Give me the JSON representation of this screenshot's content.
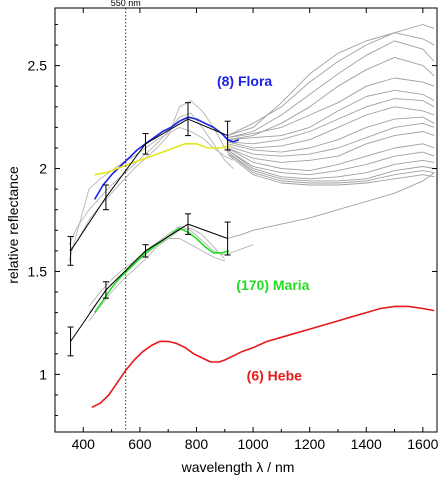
{
  "chart_data": {
    "type": "line",
    "title": "",
    "xlabel": "wavelength λ / nm",
    "ylabel": "relative reflectance",
    "xlim": [
      300,
      1650
    ],
    "ylim": [
      0.72,
      2.78
    ],
    "x_ticks": [
      400,
      600,
      800,
      1000,
      1200,
      1400,
      1600
    ],
    "y_ticks": [
      1,
      1.5,
      2,
      2.5
    ],
    "y_tick_labels": [
      "1",
      "1.5",
      "2",
      "2.5"
    ],
    "grid": false,
    "reference_line": {
      "x": 550,
      "label": "550 nm",
      "style": "dotted"
    },
    "annotations": [
      {
        "text": "(8) Flora",
        "color": "#1a22e6",
        "x": 970,
        "y": 2.4
      },
      {
        "text": "(170) Maria",
        "color": "#22dd22",
        "x": 1070,
        "y": 1.41
      },
      {
        "text": "(6) Hebe",
        "color": "#e61a1a",
        "x": 1075,
        "y": 0.97
      }
    ],
    "series": [
      {
        "color": "#1a22e6",
        "x": [
          440,
          470,
          500,
          530,
          560,
          590,
          620,
          650,
          680,
          710,
          740,
          770,
          800,
          830,
          860,
          890,
          910,
          930,
          950
        ],
        "y": [
          1.85,
          1.92,
          1.97,
          2.01,
          2.05,
          2.09,
          2.12,
          2.15,
          2.18,
          2.2,
          2.23,
          2.25,
          2.24,
          2.22,
          2.2,
          2.17,
          2.14,
          2.13,
          2.14
        ]
      },
      {
        "color": "#e6e61a",
        "x": [
          440,
          480,
          520,
          560,
          600,
          640,
          680,
          720,
          760,
          800,
          840,
          880,
          920
        ],
        "y": [
          1.97,
          1.98,
          2.0,
          2.02,
          2.04,
          2.06,
          2.08,
          2.1,
          2.12,
          2.12,
          2.1,
          2.1,
          2.11
        ]
      },
      {
        "color": "#22dd22",
        "x": [
          440,
          470,
          500,
          530,
          560,
          590,
          620,
          650,
          680,
          710,
          740,
          770,
          800,
          830,
          860,
          890,
          915
        ],
        "y": [
          1.3,
          1.36,
          1.42,
          1.47,
          1.51,
          1.55,
          1.59,
          1.62,
          1.65,
          1.68,
          1.71,
          1.69,
          1.66,
          1.62,
          1.59,
          1.59,
          1.6
        ]
      },
      {
        "color": "#e61a1a",
        "x": [
          430,
          460,
          490,
          520,
          550,
          580,
          610,
          640,
          670,
          700,
          730,
          760,
          790,
          820,
          850,
          880,
          900,
          930,
          960,
          1000,
          1050,
          1100,
          1150,
          1200,
          1250,
          1300,
          1350,
          1400,
          1450,
          1500,
          1550,
          1600,
          1640
        ],
        "y": [
          0.84,
          0.86,
          0.9,
          0.96,
          1.02,
          1.07,
          1.11,
          1.14,
          1.16,
          1.16,
          1.15,
          1.13,
          1.1,
          1.08,
          1.06,
          1.06,
          1.07,
          1.09,
          1.11,
          1.13,
          1.16,
          1.18,
          1.2,
          1.22,
          1.24,
          1.26,
          1.28,
          1.3,
          1.32,
          1.33,
          1.33,
          1.32,
          1.31
        ]
      },
      {
        "color": "#000000",
        "errorbars": true,
        "x": [
          355,
          480,
          620,
          770,
          910
        ],
        "y": [
          1.6,
          1.86,
          2.12,
          2.24,
          2.16
        ],
        "err": [
          0.07,
          0.06,
          0.05,
          0.08,
          0.07
        ]
      },
      {
        "color": "#000000",
        "errorbars": true,
        "x": [
          355,
          480,
          620,
          770,
          910
        ],
        "y": [
          1.16,
          1.41,
          1.6,
          1.73,
          1.66
        ],
        "err": [
          0.07,
          0.04,
          0.03,
          0.05,
          0.08
        ]
      },
      {
        "color": "#a0a0a0",
        "x": [
          910,
          1000,
          1100,
          1200,
          1300,
          1400,
          1500,
          1600,
          1640
        ],
        "y": [
          2.16,
          2.2,
          2.32,
          2.46,
          2.56,
          2.62,
          2.66,
          2.7,
          2.68
        ]
      },
      {
        "color": "#a0a0a0",
        "x": [
          910,
          1000,
          1100,
          1200,
          1300,
          1400,
          1500,
          1600,
          1640
        ],
        "y": [
          2.16,
          2.22,
          2.3,
          2.42,
          2.52,
          2.6,
          2.66,
          2.63,
          2.6
        ]
      },
      {
        "color": "#a0a0a0",
        "x": [
          910,
          1000,
          1100,
          1200,
          1300,
          1400,
          1500,
          1600,
          1640
        ],
        "y": [
          2.15,
          2.18,
          2.26,
          2.36,
          2.46,
          2.55,
          2.62,
          2.58,
          2.52
        ]
      },
      {
        "color": "#a0a0a0",
        "x": [
          910,
          1000,
          1100,
          1200,
          1300,
          1400,
          1500,
          1600,
          1640
        ],
        "y": [
          2.14,
          2.16,
          2.22,
          2.3,
          2.4,
          2.48,
          2.54,
          2.5,
          2.45
        ]
      },
      {
        "color": "#a0a0a0",
        "x": [
          910,
          1000,
          1100,
          1200,
          1300,
          1400,
          1500,
          1600,
          1640
        ],
        "y": [
          2.15,
          2.17,
          2.2,
          2.26,
          2.32,
          2.4,
          2.44,
          2.42,
          2.4
        ]
      },
      {
        "color": "#a0a0a0",
        "x": [
          910,
          1000,
          1100,
          1200,
          1300,
          1400,
          1500,
          1600,
          1640
        ],
        "y": [
          2.14,
          2.15,
          2.16,
          2.2,
          2.28,
          2.35,
          2.38,
          2.36,
          2.33
        ]
      },
      {
        "color": "#a0a0a0",
        "x": [
          910,
          1000,
          1100,
          1200,
          1300,
          1400,
          1500,
          1600,
          1640
        ],
        "y": [
          2.13,
          2.12,
          2.14,
          2.18,
          2.24,
          2.3,
          2.34,
          2.33,
          2.3
        ]
      },
      {
        "color": "#a0a0a0",
        "x": [
          910,
          1000,
          1100,
          1200,
          1300,
          1400,
          1500,
          1600,
          1640
        ],
        "y": [
          2.13,
          2.1,
          2.11,
          2.14,
          2.2,
          2.26,
          2.3,
          2.28,
          2.26
        ]
      },
      {
        "color": "#a0a0a0",
        "x": [
          910,
          1000,
          1100,
          1200,
          1300,
          1400,
          1500,
          1600,
          1640
        ],
        "y": [
          2.12,
          2.09,
          2.08,
          2.1,
          2.14,
          2.2,
          2.24,
          2.25,
          2.22
        ]
      },
      {
        "color": "#a0a0a0",
        "x": [
          910,
          1000,
          1100,
          1200,
          1300,
          1400,
          1500,
          1600,
          1640
        ],
        "y": [
          2.11,
          2.07,
          2.06,
          2.07,
          2.1,
          2.15,
          2.2,
          2.22,
          2.2
        ]
      },
      {
        "color": "#a0a0a0",
        "x": [
          910,
          1000,
          1100,
          1200,
          1300,
          1400,
          1500,
          1600,
          1640
        ],
        "y": [
          2.1,
          2.05,
          2.03,
          2.04,
          2.06,
          2.12,
          2.16,
          2.18,
          2.16
        ]
      },
      {
        "color": "#a0a0a0",
        "x": [
          910,
          1000,
          1100,
          1200,
          1300,
          1400,
          1500,
          1600,
          1640
        ],
        "y": [
          2.1,
          2.03,
          2.0,
          1.99,
          2.02,
          2.06,
          2.1,
          2.12,
          2.1
        ]
      },
      {
        "color": "#a0a0a0",
        "x": [
          910,
          1000,
          1100,
          1200,
          1300,
          1400,
          1500,
          1600,
          1640
        ],
        "y": [
          2.09,
          2.01,
          1.98,
          1.97,
          1.99,
          2.02,
          2.06,
          2.08,
          2.06
        ]
      },
      {
        "color": "#a0a0a0",
        "x": [
          910,
          1000,
          1100,
          1200,
          1300,
          1400,
          1500,
          1600,
          1640
        ],
        "y": [
          2.09,
          2.0,
          1.96,
          1.95,
          1.96,
          1.98,
          2.02,
          2.04,
          2.03
        ]
      },
      {
        "color": "#a0a0a0",
        "x": [
          910,
          1000,
          1100,
          1200,
          1300,
          1400,
          1500,
          1600,
          1640
        ],
        "y": [
          2.08,
          1.99,
          1.95,
          1.94,
          1.94,
          1.95,
          1.99,
          2.01,
          2.0
        ]
      },
      {
        "color": "#a0a0a0",
        "x": [
          910,
          1000,
          1100,
          1200,
          1300,
          1400,
          1500,
          1600,
          1640
        ],
        "y": [
          2.08,
          1.98,
          1.94,
          1.93,
          1.93,
          1.94,
          1.97,
          1.99,
          1.98
        ]
      },
      {
        "color": "#a0a0a0",
        "x": [
          910,
          1000,
          1100,
          1200,
          1300,
          1400,
          1500,
          1600,
          1640
        ],
        "y": [
          2.07,
          1.97,
          1.93,
          1.92,
          1.92,
          1.93,
          1.95,
          1.97,
          1.96
        ]
      },
      {
        "color": "#a0a0a0",
        "x": [
          910,
          960,
          1000,
          1100,
          1200,
          1300,
          1400,
          1500,
          1600,
          1640
        ],
        "y": [
          1.66,
          1.68,
          1.7,
          1.73,
          1.76,
          1.8,
          1.84,
          1.88,
          1.94,
          1.98
        ]
      },
      {
        "color": "#b4b4b4",
        "x": [
          350,
          380,
          420,
          460,
          500,
          540,
          580,
          620,
          660,
          700,
          740,
          780,
          820,
          860,
          900,
          930
        ],
        "y": [
          1.63,
          1.72,
          1.8,
          1.86,
          1.92,
          1.97,
          2.02,
          2.07,
          2.12,
          2.18,
          2.25,
          2.27,
          2.2,
          2.12,
          2.04,
          2.0
        ]
      },
      {
        "color": "#b4b4b4",
        "x": [
          350,
          380,
          420,
          460,
          500,
          540,
          580,
          620,
          660,
          700,
          740,
          780,
          820,
          860,
          900,
          930
        ],
        "y": [
          1.6,
          1.65,
          1.75,
          1.82,
          1.88,
          1.94,
          2.0,
          2.05,
          2.1,
          2.16,
          2.3,
          2.33,
          2.28,
          2.2,
          2.1,
          2.05
        ]
      },
      {
        "color": "#b4b4b4",
        "x": [
          350,
          380,
          420,
          460,
          500,
          540,
          580,
          620,
          660,
          700,
          740,
          780,
          820,
          860,
          900,
          930
        ],
        "y": [
          1.55,
          1.7,
          1.9,
          1.95,
          1.99,
          2.03,
          2.06,
          2.1,
          2.14,
          2.17,
          2.2,
          2.18,
          2.15,
          2.1,
          2.06,
          2.04
        ]
      },
      {
        "color": "#b4b4b4",
        "x": [
          420,
          460,
          500,
          540,
          580,
          620,
          660,
          700,
          740,
          780,
          820,
          860,
          900
        ],
        "y": [
          1.26,
          1.33,
          1.4,
          1.46,
          1.51,
          1.56,
          1.62,
          1.66,
          1.7,
          1.71,
          1.68,
          1.62,
          1.56
        ]
      },
      {
        "color": "#b4b4b4",
        "x": [
          420,
          460,
          500,
          540,
          580,
          620,
          660,
          700,
          740,
          780,
          820,
          860,
          900
        ],
        "y": [
          1.3,
          1.37,
          1.44,
          1.49,
          1.54,
          1.58,
          1.63,
          1.66,
          1.66,
          1.63,
          1.6,
          1.57,
          1.55
        ]
      },
      {
        "color": "#b4b4b4",
        "x": [
          420,
          460,
          500,
          540,
          580,
          620,
          660,
          700,
          740,
          780,
          820,
          860,
          900,
          960,
          1000
        ],
        "y": [
          1.33,
          1.4,
          1.46,
          1.51,
          1.55,
          1.6,
          1.64,
          1.68,
          1.72,
          1.7,
          1.65,
          1.6,
          1.58,
          1.61,
          1.63
        ]
      }
    ]
  }
}
